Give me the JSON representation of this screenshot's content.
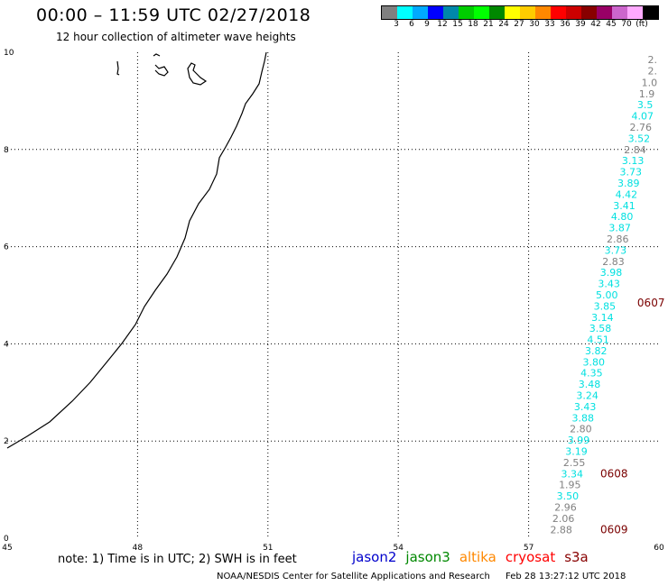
{
  "header": {
    "title": "00:00 – 11:59 UTC 02/27/2018",
    "subtitle": "12 hour collection of altimeter wave heights"
  },
  "colorbar": {
    "colors": [
      "#808080",
      "#00ffff",
      "#00aaff",
      "#0000ff",
      "#0088aa",
      "#00cc00",
      "#00ff00",
      "#008800",
      "#ffff00",
      "#ffcc00",
      "#ff8800",
      "#ff0000",
      "#cc0000",
      "#880000",
      "#990066",
      "#cc66cc",
      "#ffaaff",
      "#000000"
    ],
    "labels": [
      "3",
      "6",
      "9",
      "12",
      "15",
      "18",
      "21",
      "24",
      "27",
      "30",
      "33",
      "36",
      "39",
      "42",
      "45",
      "70",
      "(ft)"
    ]
  },
  "axes": {
    "x_ticks": [
      45,
      48,
      51,
      54,
      57,
      60
    ],
    "y_ticks": [
      0,
      2,
      4,
      6,
      8,
      10
    ],
    "xlim": [
      45,
      60
    ],
    "ylim": [
      0,
      10
    ]
  },
  "wave_heights": [
    {
      "text": "2.",
      "lon": 59.85,
      "lat": 9.85,
      "color": "#808080"
    },
    {
      "text": "2.",
      "lon": 59.85,
      "lat": 9.62,
      "color": "#808080"
    },
    {
      "text": "1.0",
      "lon": 59.78,
      "lat": 9.38,
      "color": "#808080"
    },
    {
      "text": "1.9",
      "lon": 59.72,
      "lat": 9.15,
      "color": "#808080"
    },
    {
      "text": "3.5",
      "lon": 59.68,
      "lat": 8.92,
      "color": "#00e0e0"
    },
    {
      "text": "4.07",
      "lon": 59.62,
      "lat": 8.69,
      "color": "#00e0e0"
    },
    {
      "text": "2.76",
      "lon": 59.58,
      "lat": 8.46,
      "color": "#808080"
    },
    {
      "text": "3.52",
      "lon": 59.54,
      "lat": 8.23,
      "color": "#00e0e0"
    },
    {
      "text": "2.84",
      "lon": 59.45,
      "lat": 8.0,
      "color": "#808080"
    },
    {
      "text": "3.13",
      "lon": 59.4,
      "lat": 7.77,
      "color": "#00e0e0"
    },
    {
      "text": "3.73",
      "lon": 59.35,
      "lat": 7.54,
      "color": "#00e0e0"
    },
    {
      "text": "3.89",
      "lon": 59.3,
      "lat": 7.31,
      "color": "#00e0e0"
    },
    {
      "text": "4.42",
      "lon": 59.25,
      "lat": 7.08,
      "color": "#00e0e0"
    },
    {
      "text": "3.41",
      "lon": 59.2,
      "lat": 6.85,
      "color": "#00e0e0"
    },
    {
      "text": "4.80",
      "lon": 59.15,
      "lat": 6.62,
      "color": "#00e0e0"
    },
    {
      "text": "3.87",
      "lon": 59.1,
      "lat": 6.39,
      "color": "#00e0e0"
    },
    {
      "text": "2.86",
      "lon": 59.05,
      "lat": 6.16,
      "color": "#808080"
    },
    {
      "text": "3.73",
      "lon": 59.0,
      "lat": 5.93,
      "color": "#00e0e0"
    },
    {
      "text": "2.83",
      "lon": 58.95,
      "lat": 5.7,
      "color": "#808080"
    },
    {
      "text": "3.98",
      "lon": 58.9,
      "lat": 5.47,
      "color": "#00e0e0"
    },
    {
      "text": "3.43",
      "lon": 58.85,
      "lat": 5.24,
      "color": "#00e0e0"
    },
    {
      "text": "5.00",
      "lon": 58.8,
      "lat": 5.01,
      "color": "#00e0e0"
    },
    {
      "text": "3.85",
      "lon": 58.75,
      "lat": 4.78,
      "color": "#00e0e0"
    },
    {
      "text": "3.14",
      "lon": 58.7,
      "lat": 4.55,
      "color": "#00e0e0"
    },
    {
      "text": "3.58",
      "lon": 58.65,
      "lat": 4.32,
      "color": "#00e0e0"
    },
    {
      "text": "4.51",
      "lon": 58.6,
      "lat": 4.09,
      "color": "#00e0e0"
    },
    {
      "text": "3.82",
      "lon": 58.55,
      "lat": 3.86,
      "color": "#00e0e0"
    },
    {
      "text": "3.80",
      "lon": 58.5,
      "lat": 3.63,
      "color": "#00e0e0"
    },
    {
      "text": "4.35",
      "lon": 58.45,
      "lat": 3.4,
      "color": "#00e0e0"
    },
    {
      "text": "3.48",
      "lon": 58.4,
      "lat": 3.17,
      "color": "#00e0e0"
    },
    {
      "text": "3.24",
      "lon": 58.35,
      "lat": 2.94,
      "color": "#00e0e0"
    },
    {
      "text": "3.43",
      "lon": 58.3,
      "lat": 2.71,
      "color": "#00e0e0"
    },
    {
      "text": "3.88",
      "lon": 58.25,
      "lat": 2.48,
      "color": "#00e0e0"
    },
    {
      "text": "2.80",
      "lon": 58.2,
      "lat": 2.25,
      "color": "#808080"
    },
    {
      "text": "3.99",
      "lon": 58.15,
      "lat": 2.02,
      "color": "#00e0e0"
    },
    {
      "text": "3.19",
      "lon": 58.1,
      "lat": 1.79,
      "color": "#00e0e0"
    },
    {
      "text": "2.55",
      "lon": 58.05,
      "lat": 1.56,
      "color": "#808080"
    },
    {
      "text": "3.34",
      "lon": 58.0,
      "lat": 1.33,
      "color": "#00e0e0"
    },
    {
      "text": "1.95",
      "lon": 57.95,
      "lat": 1.1,
      "color": "#808080"
    },
    {
      "text": "3.50",
      "lon": 57.9,
      "lat": 0.87,
      "color": "#00e0e0"
    },
    {
      "text": "2.96",
      "lon": 57.85,
      "lat": 0.64,
      "color": "#808080"
    },
    {
      "text": "2.06",
      "lon": 57.8,
      "lat": 0.41,
      "color": "#808080"
    },
    {
      "text": "2.88",
      "lon": 57.75,
      "lat": 0.18,
      "color": "#808080"
    }
  ],
  "time_labels": [
    {
      "text": "0607",
      "lon": 59.5,
      "lat": 4.84
    },
    {
      "text": "0608",
      "lon": 58.65,
      "lat": 1.33
    },
    {
      "text": "0609",
      "lon": 58.65,
      "lat": 0.18
    }
  ],
  "footer": {
    "note": "note:  1) Time is in UTC;  2) SWH is in feet",
    "legend": [
      {
        "name": "jason2",
        "color": "#0000cc"
      },
      {
        "name": "jason3",
        "color": "#008800"
      },
      {
        "name": "altika",
        "color": "#ff8800"
      },
      {
        "name": "cryosat",
        "color": "#ff0000"
      },
      {
        "name": "s3a",
        "color": "#880000"
      }
    ],
    "credit": "NOAA/NESDIS Center for Satellite Applications and Research",
    "timestamp": "Feb 28 13:27:12 UTC 2018"
  }
}
